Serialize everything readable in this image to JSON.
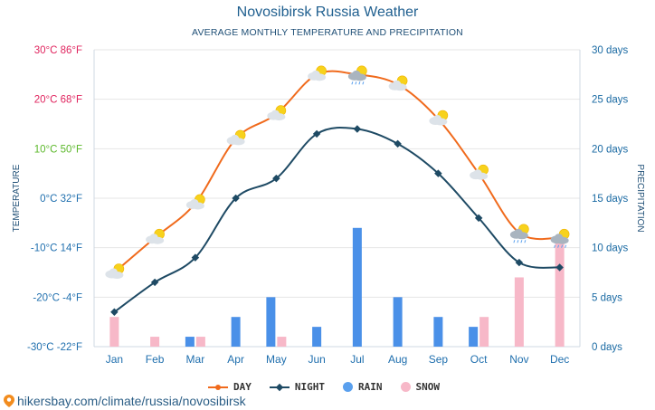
{
  "header": {
    "title": "Novosibirsk Russia Weather",
    "subtitle": "AVERAGE MONTHLY TEMPERATURE AND PRECIPITATION"
  },
  "footer": {
    "url": "hikersbay.com/climate/russia/novosibirsk"
  },
  "legend": {
    "day": "DAY",
    "night": "NIGHT",
    "rain": "RAIN",
    "snow": "SNOW"
  },
  "colors": {
    "day": "#f06a1c",
    "night": "#1e4a64",
    "rain": "#4a90e8",
    "snow": "#f7b8c8",
    "axis_right": "#1a6aa3",
    "month_label": "#1f6fae",
    "warm_label": "#e0245e",
    "mild_label": "#5cb82b",
    "cold_label": "#1f6fae"
  },
  "chart_data": {
    "type": "line+bar",
    "title": "Novosibirsk Russia Weather",
    "subtitle": "AVERAGE MONTHLY TEMPERATURE AND PRECIPITATION",
    "categories": [
      "Jan",
      "Feb",
      "Mar",
      "Apr",
      "May",
      "Jun",
      "Jul",
      "Aug",
      "Sep",
      "Oct",
      "Nov",
      "Dec"
    ],
    "left_axis": {
      "label": "TEMPERATURE",
      "ylim": [
        -30,
        30
      ],
      "ticks": [
        {
          "value": 30,
          "label": "30°C 86°F",
          "tone": "warm"
        },
        {
          "value": 20,
          "label": "20°C 68°F",
          "tone": "warm"
        },
        {
          "value": 10,
          "label": "10°C 50°F",
          "tone": "mild"
        },
        {
          "value": 0,
          "label": "0°C 32°F",
          "tone": "cold"
        },
        {
          "value": -10,
          "label": "-10°C 14°F",
          "tone": "cold"
        },
        {
          "value": -20,
          "label": "-20°C -4°F",
          "tone": "cold"
        },
        {
          "value": -30,
          "label": "-30°C -22°F",
          "tone": "cold"
        }
      ]
    },
    "right_axis": {
      "label": "PRECIPITATION",
      "ylim": [
        0,
        30
      ],
      "ticks": [
        {
          "value": 30,
          "label": "30 days"
        },
        {
          "value": 25,
          "label": "25 days"
        },
        {
          "value": 20,
          "label": "20 days"
        },
        {
          "value": 15,
          "label": "15 days"
        },
        {
          "value": 10,
          "label": "10 days"
        },
        {
          "value": 5,
          "label": "5 days"
        },
        {
          "value": 0,
          "label": "0 days"
        }
      ]
    },
    "series": [
      {
        "name": "DAY",
        "kind": "line",
        "axis": "left",
        "values": [
          -15,
          -8,
          -1,
          12,
          17,
          25,
          25,
          23,
          16,
          5,
          -7,
          -8
        ]
      },
      {
        "name": "NIGHT",
        "kind": "line",
        "axis": "left",
        "values": [
          -23,
          -17,
          -12,
          0,
          4,
          13,
          14,
          11,
          5,
          -4,
          -13,
          -14
        ]
      },
      {
        "name": "RAIN",
        "kind": "bar",
        "axis": "right",
        "values": [
          0,
          0,
          1,
          3,
          5,
          2,
          12,
          5,
          3,
          2,
          0,
          0
        ]
      },
      {
        "name": "SNOW",
        "kind": "bar",
        "axis": "right",
        "values": [
          3,
          1,
          1,
          0,
          1,
          0,
          0,
          0,
          0,
          3,
          7,
          11
        ]
      }
    ],
    "weather_icons": [
      "sun-cloud",
      "sun-cloud",
      "sun-cloud",
      "sun-cloud",
      "sun-cloud",
      "sun-cloud",
      "sun-rain-cloud",
      "sun-cloud",
      "sun-cloud",
      "sun-cloud",
      "sun-rain-cloud",
      "sun-rain-cloud"
    ],
    "grid": true,
    "legend_position": "bottom-center"
  }
}
